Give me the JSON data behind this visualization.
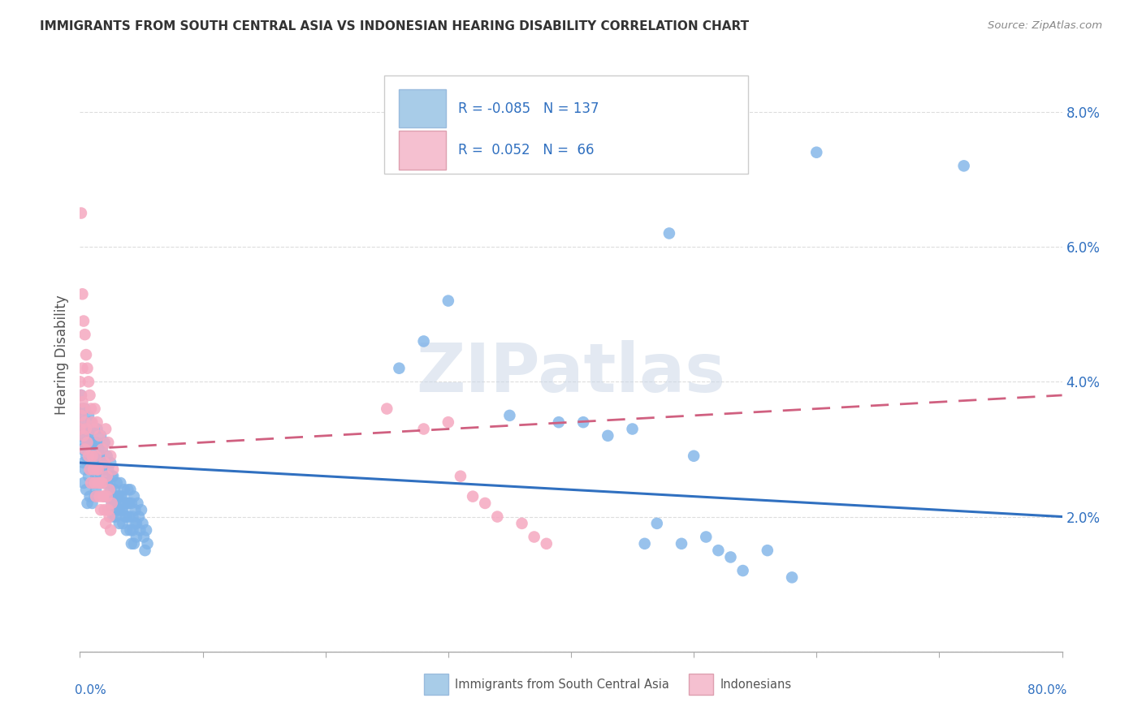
{
  "title": "IMMIGRANTS FROM SOUTH CENTRAL ASIA VS INDONESIAN HEARING DISABILITY CORRELATION CHART",
  "source": "Source: ZipAtlas.com",
  "ylabel": "Hearing Disability",
  "yticks": [
    0.0,
    0.02,
    0.04,
    0.06,
    0.08
  ],
  "ytick_labels": [
    "",
    "2.0%",
    "4.0%",
    "6.0%",
    "8.0%"
  ],
  "xlim": [
    0.0,
    0.8
  ],
  "ylim": [
    0.0,
    0.088
  ],
  "blue_color": "#7fb3e8",
  "pink_color": "#f5a8c0",
  "blue_line_color": "#3070c0",
  "pink_line_color": "#d06080",
  "blue_legend_color": "#a8cce8",
  "pink_legend_color": "#f5c0d0",
  "watermark": "ZIPatlas",
  "blue_r": -0.085,
  "blue_n": 137,
  "pink_r": 0.052,
  "pink_n": 66,
  "blue_scatter": [
    [
      0.001,
      0.032
    ],
    [
      0.002,
      0.03
    ],
    [
      0.001,
      0.035
    ],
    [
      0.003,
      0.028
    ],
    [
      0.002,
      0.033
    ],
    [
      0.004,
      0.031
    ],
    [
      0.003,
      0.025
    ],
    [
      0.005,
      0.029
    ],
    [
      0.004,
      0.027
    ],
    [
      0.006,
      0.032
    ],
    [
      0.005,
      0.024
    ],
    [
      0.007,
      0.03
    ],
    [
      0.006,
      0.022
    ],
    [
      0.008,
      0.028
    ],
    [
      0.007,
      0.026
    ],
    [
      0.009,
      0.031
    ],
    [
      0.008,
      0.023
    ],
    [
      0.01,
      0.029
    ],
    [
      0.009,
      0.027
    ],
    [
      0.011,
      0.025
    ],
    [
      0.01,
      0.022
    ],
    [
      0.012,
      0.03
    ],
    [
      0.011,
      0.028
    ],
    [
      0.013,
      0.026
    ],
    [
      0.012,
      0.023
    ],
    [
      0.014,
      0.031
    ],
    [
      0.013,
      0.024
    ],
    [
      0.015,
      0.027
    ],
    [
      0.014,
      0.025
    ],
    [
      0.016,
      0.029
    ],
    [
      0.001,
      0.038
    ],
    [
      0.002,
      0.036
    ],
    [
      0.003,
      0.034
    ],
    [
      0.004,
      0.036
    ],
    [
      0.005,
      0.033
    ],
    [
      0.006,
      0.031
    ],
    [
      0.007,
      0.035
    ],
    [
      0.008,
      0.032
    ],
    [
      0.009,
      0.034
    ],
    [
      0.01,
      0.03
    ],
    [
      0.011,
      0.033
    ],
    [
      0.012,
      0.031
    ],
    [
      0.013,
      0.029
    ],
    [
      0.014,
      0.033
    ],
    [
      0.015,
      0.03
    ],
    [
      0.016,
      0.028
    ],
    [
      0.017,
      0.032
    ],
    [
      0.018,
      0.03
    ],
    [
      0.019,
      0.028
    ],
    [
      0.02,
      0.031
    ],
    [
      0.017,
      0.026
    ],
    [
      0.018,
      0.028
    ],
    [
      0.019,
      0.025
    ],
    [
      0.02,
      0.027
    ],
    [
      0.021,
      0.025
    ],
    [
      0.022,
      0.029
    ],
    [
      0.023,
      0.027
    ],
    [
      0.024,
      0.025
    ],
    [
      0.025,
      0.028
    ],
    [
      0.026,
      0.026
    ],
    [
      0.021,
      0.023
    ],
    [
      0.022,
      0.025
    ],
    [
      0.023,
      0.023
    ],
    [
      0.024,
      0.021
    ],
    [
      0.025,
      0.024
    ],
    [
      0.026,
      0.022
    ],
    [
      0.027,
      0.026
    ],
    [
      0.028,
      0.024
    ],
    [
      0.029,
      0.022
    ],
    [
      0.03,
      0.025
    ],
    [
      0.031,
      0.023
    ],
    [
      0.032,
      0.021
    ],
    [
      0.033,
      0.025
    ],
    [
      0.034,
      0.023
    ],
    [
      0.035,
      0.021
    ],
    [
      0.036,
      0.024
    ],
    [
      0.037,
      0.022
    ],
    [
      0.038,
      0.02
    ],
    [
      0.039,
      0.024
    ],
    [
      0.04,
      0.022
    ],
    [
      0.027,
      0.02
    ],
    [
      0.028,
      0.022
    ],
    [
      0.029,
      0.02
    ],
    [
      0.03,
      0.023
    ],
    [
      0.031,
      0.021
    ],
    [
      0.032,
      0.019
    ],
    [
      0.033,
      0.023
    ],
    [
      0.034,
      0.021
    ],
    [
      0.035,
      0.019
    ],
    [
      0.036,
      0.022
    ],
    [
      0.041,
      0.024
    ],
    [
      0.042,
      0.022
    ],
    [
      0.043,
      0.02
    ],
    [
      0.044,
      0.023
    ],
    [
      0.045,
      0.021
    ],
    [
      0.046,
      0.019
    ],
    [
      0.047,
      0.022
    ],
    [
      0.048,
      0.02
    ],
    [
      0.049,
      0.018
    ],
    [
      0.05,
      0.021
    ],
    [
      0.037,
      0.02
    ],
    [
      0.038,
      0.018
    ],
    [
      0.039,
      0.022
    ],
    [
      0.04,
      0.02
    ],
    [
      0.041,
      0.018
    ],
    [
      0.042,
      0.016
    ],
    [
      0.043,
      0.018
    ],
    [
      0.044,
      0.016
    ],
    [
      0.045,
      0.019
    ],
    [
      0.046,
      0.017
    ],
    [
      0.051,
      0.019
    ],
    [
      0.052,
      0.017
    ],
    [
      0.053,
      0.015
    ],
    [
      0.054,
      0.018
    ],
    [
      0.055,
      0.016
    ],
    [
      0.26,
      0.042
    ],
    [
      0.28,
      0.046
    ],
    [
      0.3,
      0.052
    ],
    [
      0.35,
      0.035
    ],
    [
      0.39,
      0.034
    ],
    [
      0.41,
      0.034
    ],
    [
      0.43,
      0.032
    ],
    [
      0.45,
      0.033
    ],
    [
      0.46,
      0.016
    ],
    [
      0.47,
      0.019
    ],
    [
      0.48,
      0.062
    ],
    [
      0.49,
      0.016
    ],
    [
      0.5,
      0.029
    ],
    [
      0.51,
      0.017
    ],
    [
      0.52,
      0.015
    ],
    [
      0.53,
      0.014
    ],
    [
      0.54,
      0.012
    ],
    [
      0.56,
      0.015
    ],
    [
      0.58,
      0.011
    ],
    [
      0.6,
      0.074
    ],
    [
      0.72,
      0.072
    ]
  ],
  "pink_scatter": [
    [
      0.001,
      0.065
    ],
    [
      0.002,
      0.053
    ],
    [
      0.003,
      0.049
    ],
    [
      0.004,
      0.047
    ],
    [
      0.0,
      0.04
    ],
    [
      0.001,
      0.038
    ],
    [
      0.002,
      0.042
    ],
    [
      0.003,
      0.036
    ],
    [
      0.004,
      0.034
    ],
    [
      0.005,
      0.044
    ],
    [
      0.006,
      0.042
    ],
    [
      0.007,
      0.04
    ],
    [
      0.0,
      0.033
    ],
    [
      0.001,
      0.035
    ],
    [
      0.002,
      0.037
    ],
    [
      0.003,
      0.032
    ],
    [
      0.004,
      0.03
    ],
    [
      0.005,
      0.033
    ],
    [
      0.006,
      0.031
    ],
    [
      0.007,
      0.029
    ],
    [
      0.008,
      0.038
    ],
    [
      0.009,
      0.036
    ],
    [
      0.01,
      0.034
    ],
    [
      0.011,
      0.033
    ],
    [
      0.008,
      0.027
    ],
    [
      0.009,
      0.025
    ],
    [
      0.01,
      0.029
    ],
    [
      0.011,
      0.027
    ],
    [
      0.012,
      0.036
    ],
    [
      0.013,
      0.029
    ],
    [
      0.014,
      0.034
    ],
    [
      0.015,
      0.027
    ],
    [
      0.012,
      0.025
    ],
    [
      0.013,
      0.023
    ],
    [
      0.014,
      0.027
    ],
    [
      0.015,
      0.025
    ],
    [
      0.016,
      0.032
    ],
    [
      0.017,
      0.025
    ],
    [
      0.018,
      0.03
    ],
    [
      0.019,
      0.023
    ],
    [
      0.016,
      0.023
    ],
    [
      0.017,
      0.021
    ],
    [
      0.018,
      0.025
    ],
    [
      0.019,
      0.023
    ],
    [
      0.02,
      0.028
    ],
    [
      0.021,
      0.033
    ],
    [
      0.022,
      0.026
    ],
    [
      0.023,
      0.031
    ],
    [
      0.02,
      0.021
    ],
    [
      0.021,
      0.019
    ],
    [
      0.022,
      0.023
    ],
    [
      0.023,
      0.021
    ],
    [
      0.024,
      0.024
    ],
    [
      0.025,
      0.029
    ],
    [
      0.026,
      0.022
    ],
    [
      0.027,
      0.027
    ],
    [
      0.024,
      0.02
    ],
    [
      0.025,
      0.018
    ],
    [
      0.25,
      0.036
    ],
    [
      0.28,
      0.033
    ],
    [
      0.3,
      0.034
    ],
    [
      0.31,
      0.026
    ],
    [
      0.32,
      0.023
    ],
    [
      0.33,
      0.022
    ],
    [
      0.34,
      0.02
    ],
    [
      0.36,
      0.019
    ],
    [
      0.37,
      0.017
    ],
    [
      0.38,
      0.016
    ]
  ]
}
